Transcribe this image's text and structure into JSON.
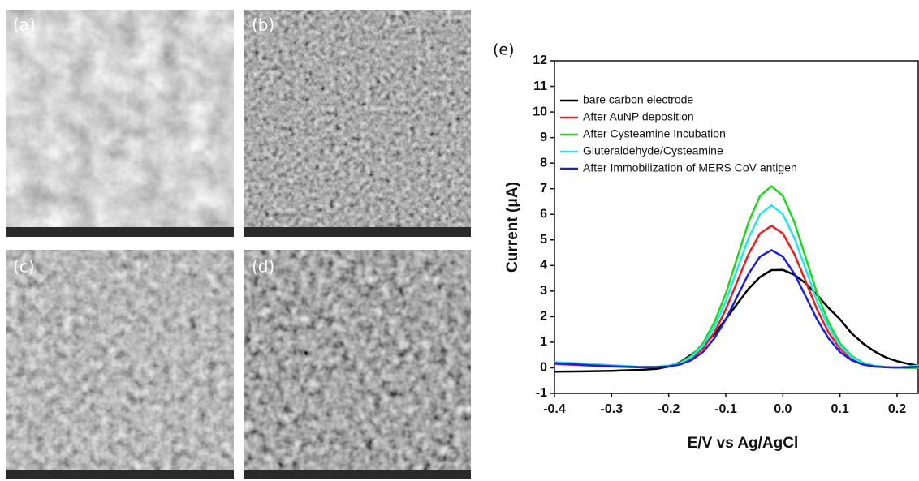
{
  "panels": [
    "(a)",
    "(b)",
    "(c)",
    "(d)"
  ],
  "chart_data": {
    "type": "line",
    "panel_label": "(e)",
    "x_label": "E/V vs Ag/AgCl",
    "y_label": "Current (μA)",
    "x": [
      -0.4,
      -0.35,
      -0.3,
      -0.25,
      -0.22,
      -0.2,
      -0.18,
      -0.16,
      -0.14,
      -0.12,
      -0.1,
      -0.08,
      -0.06,
      -0.04,
      -0.02,
      0,
      0.02,
      0.04,
      0.06,
      0.08,
      0.1,
      0.12,
      0.14,
      0.16,
      0.18,
      0.2,
      0.22,
      0.24
    ],
    "series": [
      {
        "name": "bare carbon electrode",
        "color": "#000000",
        "values": [
          -0.15,
          -0.14,
          -0.12,
          -0.08,
          -0.04,
          0.05,
          0.22,
          0.52,
          0.85,
          1.31,
          1.9,
          2.5,
          3.09,
          3.55,
          3.82,
          3.83,
          3.64,
          3.3,
          2.85,
          2.34,
          1.9,
          1.36,
          0.96,
          0.65,
          0.41,
          0.26,
          0.15,
          0.08
        ]
      },
      {
        "name": "After AuNP deposition",
        "color": "#ee1c1c",
        "values": [
          0.15,
          0.1,
          0.05,
          0.02,
          0.03,
          0.06,
          0.16,
          0.37,
          0.75,
          1.38,
          2.28,
          3.37,
          4.45,
          5.25,
          5.55,
          5.25,
          4.45,
          3.37,
          2.28,
          1.38,
          0.75,
          0.37,
          0.16,
          0.06,
          0.02,
          0.01,
          0,
          0
        ]
      },
      {
        "name": "After Cysteamine Incubation",
        "color": "#1ed81e",
        "values": [
          0.2,
          0.15,
          0.08,
          0.03,
          0.04,
          0.08,
          0.2,
          0.47,
          0.96,
          1.78,
          2.9,
          4.3,
          5.7,
          6.72,
          7.1,
          6.72,
          5.7,
          4.3,
          2.9,
          1.78,
          0.96,
          0.47,
          0.2,
          0.08,
          0.03,
          0.01,
          0,
          0
        ]
      },
      {
        "name": "Gluteraldehyde/Cysteamine",
        "color": "#22e6ee",
        "values": [
          0.22,
          0.17,
          0.1,
          0.04,
          0.04,
          0.07,
          0.18,
          0.42,
          0.86,
          1.59,
          2.6,
          3.85,
          5.08,
          6.0,
          6.35,
          6.0,
          5.08,
          3.85,
          2.6,
          1.59,
          0.86,
          0.42,
          0.18,
          0.07,
          0.03,
          0.01,
          0.05,
          0.1
        ]
      },
      {
        "name": "After Immobilization of MERS CoV antigen",
        "color": "#1c1ce6",
        "values": [
          0.18,
          0.12,
          0.06,
          0.02,
          0.03,
          0.05,
          0.13,
          0.3,
          0.62,
          1.15,
          1.89,
          2.79,
          3.68,
          4.35,
          4.6,
          4.35,
          3.68,
          2.79,
          1.89,
          1.15,
          0.62,
          0.3,
          0.13,
          0.05,
          0.02,
          0.01,
          0.02,
          0.05
        ]
      }
    ],
    "xlim": [
      -0.4,
      0.237
    ],
    "ylim": [
      -1,
      12
    ],
    "xticks": [
      -0.4,
      -0.3,
      -0.2,
      -0.1,
      {
        "value": 0,
        "label": "0.0"
      },
      0.1,
      0.2
    ],
    "yticks": [
      -1,
      0,
      1,
      2,
      3,
      4,
      5,
      6,
      7,
      8,
      9,
      10,
      11,
      12
    ],
    "legend": "upper left"
  }
}
